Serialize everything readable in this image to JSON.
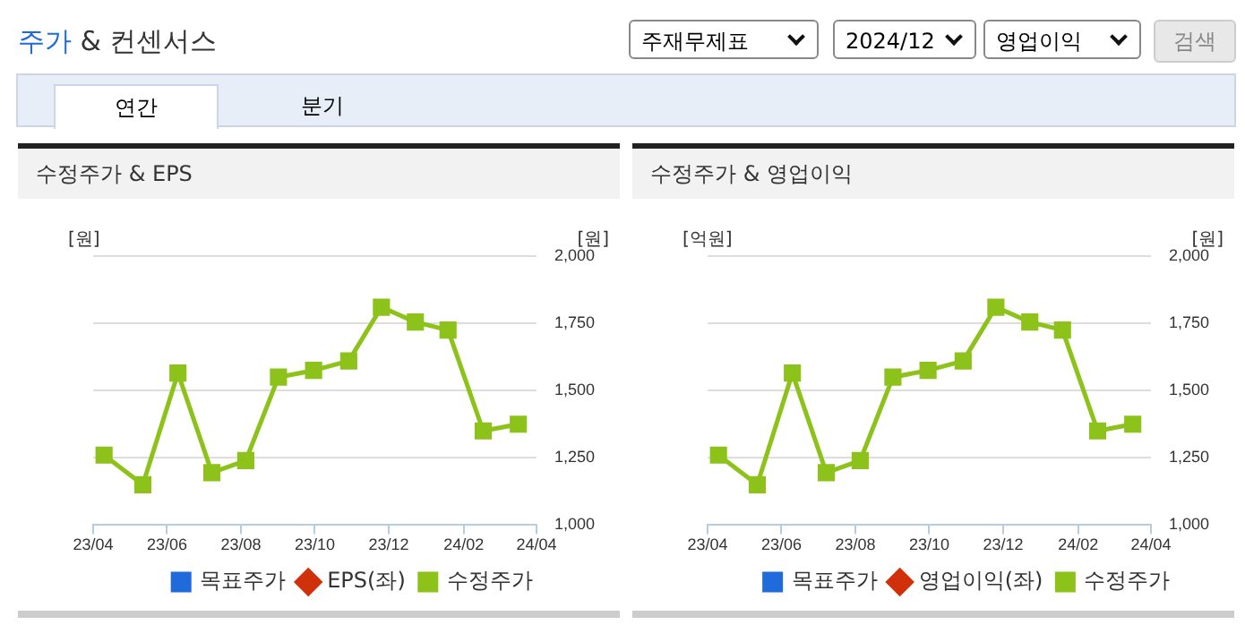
{
  "chart_data": [
    {
      "type": "line",
      "title": "수정주가 & EPS",
      "ylabel": "[원]",
      "y2label": "[원]",
      "annotations": [
        "주가 & 컨센서스",
        "주재무제표",
        "2024/12",
        "영업이익",
        "검색",
        "연간",
        "분기"
      ],
      "x": [
        "2023-04-10",
        "2023-05-12",
        "2023-06-10",
        "2023-07-08",
        "2023-08-05",
        "2023-09-01",
        "2023-09-30",
        "2023-10-29",
        "2023-11-25",
        "2023-12-23",
        "2024-01-19",
        "2024-02-17",
        "2024-03-17"
      ],
      "series": [
        {
          "name": "목표주가",
          "color": "#1f6bdb",
          "marker": "square",
          "values": [
            null,
            null,
            null,
            null,
            null,
            null,
            null,
            null,
            null,
            null,
            null,
            null,
            null
          ]
        },
        {
          "name": "EPS(좌)",
          "color": "#d0300a",
          "marker": "diamond",
          "values": [
            null,
            null,
            null,
            null,
            null,
            null,
            null,
            null,
            null,
            null,
            null,
            null,
            null
          ]
        },
        {
          "name": "수정주가",
          "color": "#8cc21a",
          "marker": "square",
          "axis": "y2",
          "values": [
            1260,
            1150,
            1565,
            1195,
            1240,
            1550,
            1575,
            1610,
            1810,
            1755,
            1725,
            1350,
            1375
          ]
        }
      ],
      "xlim": [
        "2023-04",
        "2024-04"
      ],
      "xticks": [
        {
          "value": "2023-04",
          "label": "23/04"
        },
        {
          "value": "2023-06",
          "label": "23/06"
        },
        {
          "value": "2023-08",
          "label": "23/08"
        },
        {
          "value": "2023-10",
          "label": "23/10"
        },
        {
          "value": "2023-12",
          "label": "23/12"
        },
        {
          "value": "2024-02",
          "label": "24/02"
        },
        {
          "value": "2024-04",
          "label": "24/04"
        }
      ],
      "y2lim": [
        1000,
        2000
      ],
      "y2ticks": [
        {
          "value": 1000,
          "label": "1,000"
        },
        {
          "value": 1250,
          "label": "1,250"
        },
        {
          "value": 1500,
          "label": "1,500"
        },
        {
          "value": 1750,
          "label": "1,750"
        },
        {
          "value": 2000,
          "label": "2,000"
        }
      ],
      "grid": "y",
      "legend": "bottom"
    },
    {
      "type": "line",
      "title": "수정주가 & 영업이익",
      "ylabel": "[억원]",
      "y2label": "[원]",
      "x": [
        "2023-04-10",
        "2023-05-12",
        "2023-06-10",
        "2023-07-08",
        "2023-08-05",
        "2023-09-01",
        "2023-09-30",
        "2023-10-29",
        "2023-11-25",
        "2023-12-23",
        "2024-01-19",
        "2024-02-17",
        "2024-03-17"
      ],
      "series": [
        {
          "name": "목표주가",
          "color": "#1f6bdb",
          "marker": "square",
          "values": [
            null,
            null,
            null,
            null,
            null,
            null,
            null,
            null,
            null,
            null,
            null,
            null,
            null
          ]
        },
        {
          "name": "영업이익(좌)",
          "color": "#d0300a",
          "marker": "diamond",
          "values": [
            null,
            null,
            null,
            null,
            null,
            null,
            null,
            null,
            null,
            null,
            null,
            null,
            null
          ]
        },
        {
          "name": "수정주가",
          "color": "#8cc21a",
          "marker": "square",
          "axis": "y2",
          "values": [
            1260,
            1150,
            1565,
            1195,
            1240,
            1550,
            1575,
            1610,
            1810,
            1755,
            1725,
            1350,
            1375
          ]
        }
      ],
      "xlim": [
        "2023-04",
        "2024-04"
      ],
      "xticks": [
        {
          "value": "2023-04",
          "label": "23/04"
        },
        {
          "value": "2023-06",
          "label": "23/06"
        },
        {
          "value": "2023-08",
          "label": "23/08"
        },
        {
          "value": "2023-10",
          "label": "23/10"
        },
        {
          "value": "2023-12",
          "label": "23/12"
        },
        {
          "value": "2024-02",
          "label": "24/02"
        },
        {
          "value": "2024-04",
          "label": "24/04"
        }
      ],
      "y2lim": [
        1000,
        2000
      ],
      "y2ticks": [
        {
          "value": 1000,
          "label": "1,000"
        },
        {
          "value": 1250,
          "label": "1,250"
        },
        {
          "value": 1500,
          "label": "1,500"
        },
        {
          "value": 1750,
          "label": "1,750"
        },
        {
          "value": 2000,
          "label": "2,000"
        }
      ],
      "grid": "y",
      "legend": "bottom"
    }
  ]
}
